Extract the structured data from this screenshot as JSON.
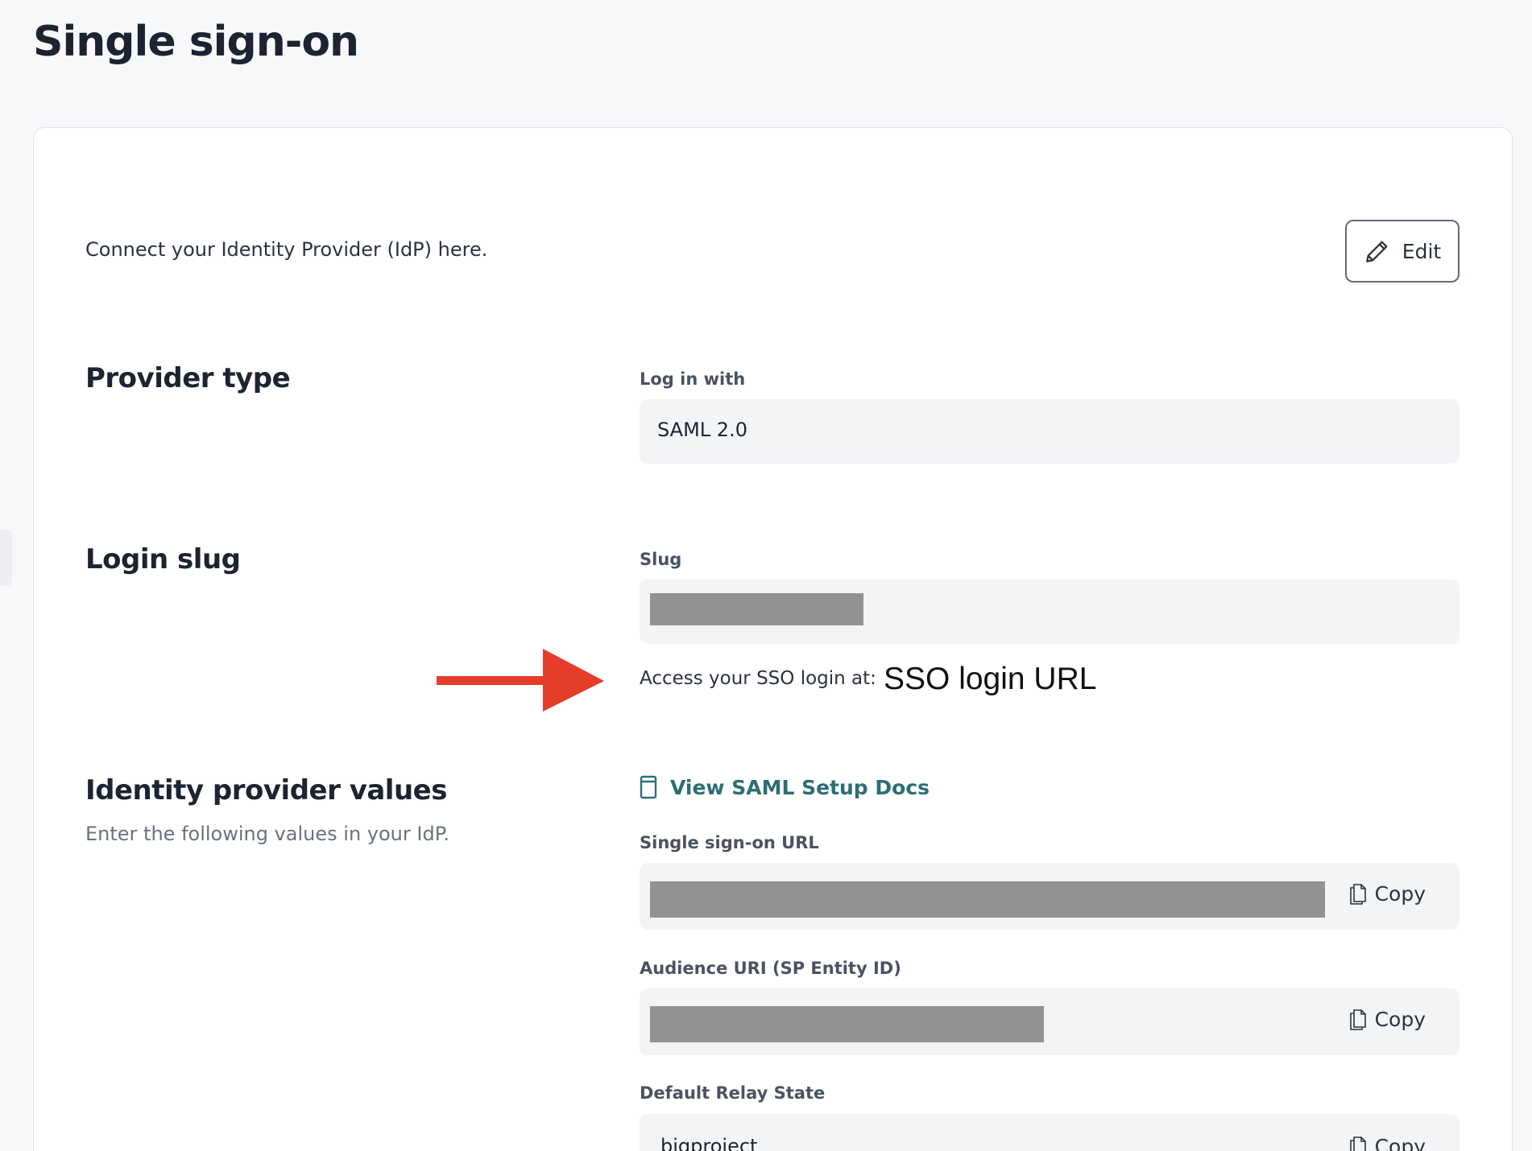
{
  "page": {
    "title": "Single sign-on"
  },
  "card": {
    "description": "Connect your Identity Provider (IdP) here.",
    "edit_label": "Edit",
    "provider_type": {
      "heading": "Provider type",
      "label": "Log in with",
      "value": "SAML 2.0"
    },
    "login_slug": {
      "heading": "Login slug",
      "label": "Slug",
      "access_text": "Access your SSO login at:",
      "annotation": "SSO login URL"
    },
    "idp_values": {
      "heading": "Identity provider values",
      "subtitle": "Enter the following values in your IdP.",
      "docs_link": "View SAML Setup Docs",
      "fields": [
        {
          "label": "Single sign-on URL",
          "copy": "Copy"
        },
        {
          "label": "Audience URI (SP Entity ID)",
          "copy": "Copy"
        },
        {
          "label": "Default Relay State",
          "value": "bigproject",
          "copy": "Copy"
        }
      ]
    }
  },
  "colors": {
    "accent_link": "#2d6e74",
    "annotation_arrow": "#e53d2a",
    "redaction": "#929292"
  }
}
